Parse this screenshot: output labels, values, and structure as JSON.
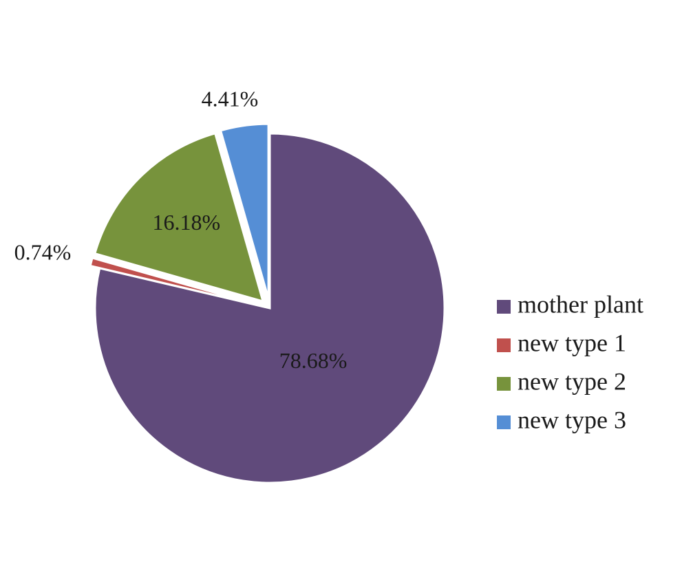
{
  "chart_data": {
    "type": "pie",
    "title": "",
    "series": [
      {
        "name": "mother plant",
        "value": 78.68,
        "label": "78.68%",
        "color": "#604a7b",
        "exploded": false
      },
      {
        "name": "new type 1",
        "value": 0.74,
        "label": "0.74%",
        "color": "#c0504d",
        "exploded": true
      },
      {
        "name": "new type 2",
        "value": 16.18,
        "label": "16.18%",
        "color": "#77933c",
        "exploded": true
      },
      {
        "name": "new type 3",
        "value": 4.41,
        "label": "4.41%",
        "color": "#558ed5",
        "exploded": true
      }
    ],
    "legend_position": "right",
    "start_angle": "12 o'clock",
    "direction": "clockwise"
  }
}
